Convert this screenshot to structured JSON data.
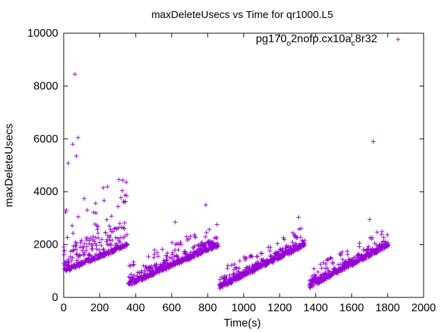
{
  "chart_data": {
    "type": "scatter",
    "title": "maxDeleteUsecs vs Time for qr1000.L5",
    "xlabel": "Time(s)",
    "ylabel": "maxDeleteUsecs",
    "xlim": [
      0,
      2000
    ],
    "ylim": [
      0,
      10000
    ],
    "xticks": [
      "0",
      "200",
      "400",
      "600",
      "800",
      "1000",
      "1200",
      "1400",
      "1600",
      "1800",
      "2000"
    ],
    "yticks": [
      "0",
      "2000",
      "4000",
      "6000",
      "8000",
      "10000"
    ],
    "grid": false,
    "legend_position": "top-right",
    "marker": "+",
    "color": "#9400d3",
    "series": [
      {
        "name_parts": [
          "pg170",
          "o",
          "2nofp.cx10a",
          "c",
          "8r32"
        ],
        "segments": [
          {
            "x_start": 0,
            "x_end": 355,
            "y_start": 1000,
            "y_end": 2000,
            "noise": 2600
          },
          {
            "x_start": 360,
            "x_end": 860,
            "y_start": 500,
            "y_end": 2000,
            "noise": 900
          },
          {
            "x_start": 865,
            "x_end": 1340,
            "y_start": 400,
            "y_end": 2000,
            "noise": 700
          },
          {
            "x_start": 1365,
            "x_end": 1805,
            "y_start": 400,
            "y_end": 2000,
            "noise": 700
          }
        ],
        "outliers": [
          {
            "x": 62,
            "y": 8450
          },
          {
            "x": 80,
            "y": 6050
          },
          {
            "x": 50,
            "y": 5800
          },
          {
            "x": 70,
            "y": 5350
          },
          {
            "x": 25,
            "y": 5080
          },
          {
            "x": 1720,
            "y": 5900
          },
          {
            "x": 220,
            "y": 4150
          },
          {
            "x": 350,
            "y": 3850
          },
          {
            "x": 790,
            "y": 3500
          },
          {
            "x": 1305,
            "y": 3030
          },
          {
            "x": 620,
            "y": 2850
          },
          {
            "x": 1700,
            "y": 2950
          }
        ]
      }
    ]
  }
}
